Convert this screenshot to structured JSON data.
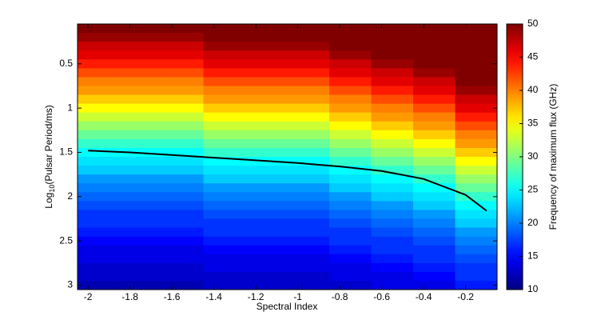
{
  "chart_data": {
    "type": "heatmap",
    "xlabel": "Spectral Index",
    "ylabel": [
      "Log",
      "10",
      "(Pulsar Period/ms)"
    ],
    "colorbar_label": "Frequency of maximum flux (GHz)",
    "colormap": "jet",
    "clim": [
      10,
      50
    ],
    "cticks": [
      10,
      15,
      20,
      25,
      30,
      35,
      40,
      45,
      50
    ],
    "xlim": [
      -2.05,
      -0.05
    ],
    "ylim": [
      0.05,
      3.05
    ],
    "y_reversed": true,
    "xticks": [
      -2,
      -1.8,
      -1.6,
      -1.4,
      -1.2,
      -1,
      -0.8,
      -0.6,
      -0.4,
      -0.2
    ],
    "yticks": [
      0.5,
      1,
      1.5,
      2,
      2.5,
      3
    ],
    "x": [
      -1.95,
      -1.75,
      -1.55,
      -1.35,
      -1.15,
      -0.95,
      -0.75,
      -0.55,
      -0.35,
      -0.15
    ],
    "y": [
      0.1,
      0.2,
      0.3,
      0.4,
      0.5,
      0.6,
      0.7,
      0.8,
      0.9,
      1.0,
      1.1,
      1.2,
      1.3,
      1.4,
      1.5,
      1.6,
      1.7,
      1.8,
      1.9,
      2.0,
      2.1,
      2.2,
      2.3,
      2.4,
      2.5,
      2.6,
      2.7,
      2.8,
      2.9,
      3.0
    ],
    "z": [
      [
        50,
        50,
        50,
        50,
        50,
        50,
        50,
        50,
        50,
        50
      ],
      [
        49,
        49,
        49,
        50,
        50,
        50,
        50,
        50,
        50,
        50
      ],
      [
        47,
        47,
        47,
        49,
        49,
        49,
        50,
        50,
        50,
        50
      ],
      [
        46,
        46,
        46,
        47,
        47,
        47,
        49,
        50,
        50,
        50
      ],
      [
        44,
        44,
        44,
        46,
        46,
        46,
        47,
        49,
        50,
        50
      ],
      [
        42,
        42,
        42,
        44,
        44,
        44,
        46,
        47,
        49,
        50
      ],
      [
        40,
        40,
        40,
        42,
        42,
        42,
        44,
        46,
        47,
        50
      ],
      [
        39,
        39,
        39,
        40,
        40,
        40,
        42,
        44,
        46,
        49
      ],
      [
        37,
        37,
        37,
        39,
        39,
        39,
        40,
        42,
        44,
        47
      ],
      [
        35,
        35,
        35,
        37,
        37,
        37,
        39,
        40,
        42,
        46
      ],
      [
        33,
        33,
        33,
        35,
        35,
        35,
        37,
        39,
        40,
        44
      ],
      [
        31,
        31,
        31,
        33,
        33,
        33,
        35,
        37,
        39,
        42
      ],
      [
        29,
        29,
        29,
        31,
        31,
        31,
        33,
        35,
        37,
        40
      ],
      [
        27,
        27,
        27,
        29,
        29,
        29,
        31,
        33,
        35,
        39
      ],
      [
        25,
        25,
        25,
        27,
        27,
        27,
        29,
        31,
        33,
        37
      ],
      [
        24,
        24,
        24,
        25,
        25,
        25,
        27,
        29,
        31,
        35
      ],
      [
        23,
        23,
        23,
        24,
        24,
        24,
        25,
        27,
        29,
        33
      ],
      [
        21,
        21,
        21,
        23,
        23,
        23,
        24,
        25,
        27,
        31
      ],
      [
        20,
        20,
        20,
        21,
        21,
        21,
        23,
        24,
        25,
        29
      ],
      [
        19,
        19,
        19,
        20,
        20,
        20,
        21,
        23,
        24,
        27
      ],
      [
        18,
        18,
        18,
        19,
        19,
        19,
        20,
        21,
        23,
        25
      ],
      [
        17,
        17,
        17,
        18,
        18,
        18,
        19,
        20,
        21,
        24
      ],
      [
        17,
        17,
        17,
        17,
        17,
        17,
        18,
        19,
        20,
        23
      ],
      [
        16,
        16,
        16,
        17,
        17,
        17,
        17,
        18,
        19,
        21
      ],
      [
        15,
        15,
        15,
        16,
        16,
        16,
        17,
        17,
        18,
        20
      ],
      [
        14,
        14,
        14,
        15,
        15,
        15,
        16,
        17,
        17,
        19
      ],
      [
        14,
        14,
        14,
        14,
        14,
        14,
        15,
        16,
        17,
        18
      ],
      [
        13,
        13,
        13,
        14,
        14,
        14,
        14,
        15,
        16,
        17
      ],
      [
        13,
        13,
        13,
        13,
        13,
        13,
        14,
        14,
        15,
        17
      ],
      [
        12,
        12,
        12,
        13,
        13,
        13,
        13,
        14,
        14,
        16
      ]
    ],
    "series": [
      {
        "color": "#000000",
        "x": [
          -2,
          -1.8,
          -1.6,
          -1.4,
          -1.2,
          -1,
          -0.8,
          -0.6,
          -0.4,
          -0.2,
          -0.1
        ],
        "values": [
          1.48,
          1.5,
          1.53,
          1.56,
          1.59,
          1.62,
          1.66,
          1.71,
          1.8,
          1.98,
          2.16
        ]
      }
    ]
  }
}
